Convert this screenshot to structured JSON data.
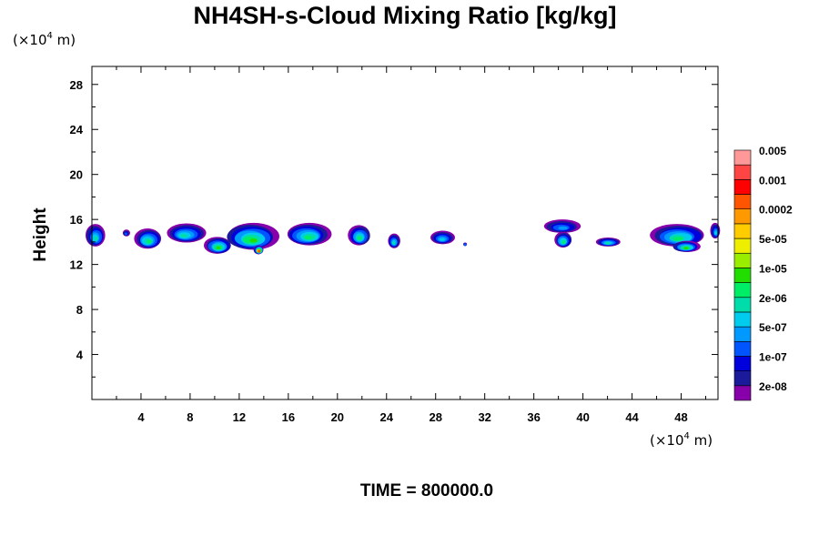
{
  "title": "NH4SH-s-Cloud Mixing Ratio [kg/kg]",
  "time_label": "TIME = 800000.0",
  "chart_data": {
    "type": "heatmap",
    "title": "NH4SH-s-Cloud Mixing Ratio [kg/kg]",
    "ylabel": "Height",
    "xlabel": "",
    "x_unit_prefix": "(×10",
    "x_unit_exp": "4",
    "x_unit_suffix": " m)",
    "y_unit_prefix": "(×10",
    "y_unit_exp": "4",
    "y_unit_suffix": " m)",
    "xlim": [
      0,
      51
    ],
    "ylim": [
      0,
      29.6
    ],
    "x_ticks": [
      4,
      8,
      12,
      16,
      20,
      24,
      28,
      32,
      36,
      40,
      44,
      48
    ],
    "x_tick_labels": [
      "4",
      "8",
      "12",
      "16",
      "20",
      "24",
      "28",
      "32",
      "36",
      "40",
      "44",
      "48"
    ],
    "y_ticks": [
      4,
      8,
      12,
      16,
      20,
      24,
      28
    ],
    "y_tick_labels": [
      "4",
      "8",
      "12",
      "16",
      "20",
      "24",
      "28"
    ],
    "grid": false,
    "colorbar": {
      "colors": [
        "#8800aa",
        "#1a1a9a",
        "#0000dd",
        "#0055ff",
        "#0099ff",
        "#00ccee",
        "#00ddaa",
        "#00ee66",
        "#22dd00",
        "#99ee00",
        "#eeee00",
        "#ffcc00",
        "#ff9900",
        "#ff5500",
        "#ff0000",
        "#ff4444",
        "#ff9999"
      ],
      "labels": [
        "2e-08",
        "1e-07",
        "5e-07",
        "2e-06",
        "1e-05",
        "5e-05",
        "0.0002",
        "0.001",
        "0.005"
      ]
    },
    "cloud_patches": [
      {
        "x": 0.3,
        "y": 14.6,
        "w": 1.6,
        "h": 2.0,
        "peak": 6
      },
      {
        "x": 2.8,
        "y": 14.8,
        "w": 0.6,
        "h": 0.6,
        "peak": 3
      },
      {
        "x": 4.6,
        "y": 14.3,
        "w": 2.2,
        "h": 1.8,
        "peak": 7
      },
      {
        "x": 7.6,
        "y": 14.8,
        "w": 3.2,
        "h": 1.7,
        "peak": 6
      },
      {
        "x": 10.3,
        "y": 13.7,
        "w": 2.2,
        "h": 1.5,
        "peak": 8
      },
      {
        "x": 13.0,
        "y": 14.5,
        "w": 4.2,
        "h": 2.4,
        "peak": 8
      },
      {
        "x": 13.6,
        "y": 13.3,
        "w": 0.8,
        "h": 0.8,
        "peak": 13
      },
      {
        "x": 17.6,
        "y": 14.7,
        "w": 3.6,
        "h": 2.0,
        "peak": 7
      },
      {
        "x": 21.8,
        "y": 14.6,
        "w": 1.8,
        "h": 1.8,
        "peak": 7
      },
      {
        "x": 24.6,
        "y": 14.1,
        "w": 1.0,
        "h": 1.3,
        "peak": 6
      },
      {
        "x": 28.6,
        "y": 14.4,
        "w": 2.0,
        "h": 1.2,
        "peak": 5
      },
      {
        "x": 30.4,
        "y": 13.8,
        "w": 0.3,
        "h": 0.3,
        "peak": 3
      },
      {
        "x": 38.3,
        "y": 15.4,
        "w": 3.0,
        "h": 1.2,
        "peak": 4
      },
      {
        "x": 38.4,
        "y": 14.2,
        "w": 1.4,
        "h": 1.4,
        "peak": 7
      },
      {
        "x": 42.0,
        "y": 14.0,
        "w": 2.0,
        "h": 0.8,
        "peak": 6
      },
      {
        "x": 47.8,
        "y": 14.6,
        "w": 4.4,
        "h": 2.0,
        "peak": 7
      },
      {
        "x": 48.4,
        "y": 13.6,
        "w": 2.2,
        "h": 1.0,
        "peak": 8
      },
      {
        "x": 50.8,
        "y": 15.0,
        "w": 0.8,
        "h": 1.4,
        "peak": 5
      }
    ]
  }
}
